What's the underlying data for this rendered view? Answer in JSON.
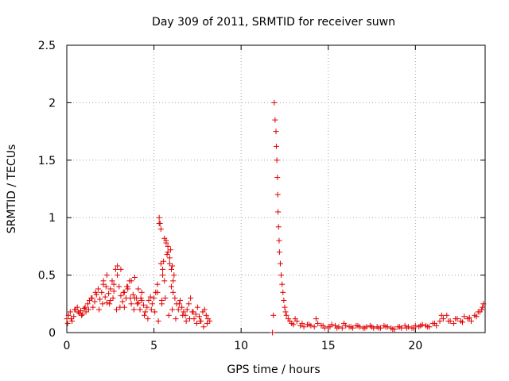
{
  "chart_data": {
    "type": "scatter",
    "title": "Day 309 of 2011, SRMTID for receiver suwn",
    "xlabel": "GPS time / hours",
    "ylabel": "SRMTID / TECUs",
    "xlim": [
      0,
      24
    ],
    "ylim": [
      0,
      2.5
    ],
    "xticks": [
      0,
      5,
      10,
      15,
      20
    ],
    "xtick_labels": [
      "0",
      "5",
      "10",
      "15",
      "20"
    ],
    "yticks": [
      0,
      0.5,
      1,
      1.5,
      2,
      2.5
    ],
    "ytick_labels": [
      "0",
      "0.5",
      "1",
      "1.5",
      "2",
      "2.5"
    ],
    "grid": true,
    "marker": "+",
    "marker_color": "#e00000",
    "series": [
      {
        "name": "SRMTID",
        "x": [
          0.0,
          0.1,
          0.2,
          0.3,
          0.4,
          0.5,
          0.6,
          0.7,
          0.8,
          0.9,
          1.0,
          1.1,
          1.2,
          1.3,
          1.4,
          1.5,
          1.6,
          1.7,
          1.8,
          1.9,
          2.0,
          2.1,
          2.2,
          2.3,
          2.4,
          2.5,
          2.6,
          2.7,
          2.8,
          2.9,
          3.0,
          3.1,
          3.2,
          3.3,
          3.4,
          3.5,
          3.6,
          3.7,
          3.8,
          3.9,
          4.0,
          4.1,
          4.2,
          4.3,
          4.4,
          4.5,
          4.6,
          4.7,
          4.8,
          4.9,
          5.0,
          5.1,
          5.2,
          5.3,
          5.4,
          5.5,
          5.6,
          5.7,
          5.8,
          5.9,
          6.0,
          6.1,
          6.2,
          6.3,
          6.4,
          6.5,
          6.6,
          6.7,
          6.8,
          6.9,
          7.0,
          7.1,
          7.2,
          7.3,
          7.4,
          7.5,
          7.6,
          7.7,
          7.8,
          7.9,
          8.0,
          8.1,
          8.2,
          0.05,
          0.25,
          0.45,
          0.65,
          0.85,
          1.05,
          1.25,
          1.45,
          1.65,
          1.85,
          2.05,
          2.25,
          2.45,
          2.65,
          2.85,
          3.05,
          3.25,
          3.45,
          3.65,
          3.85,
          4.05,
          4.25,
          4.45,
          4.65,
          4.85,
          5.05,
          5.25,
          5.45,
          5.65,
          5.85,
          6.05,
          6.25,
          6.45,
          6.65,
          6.85,
          7.05,
          7.25,
          7.45,
          7.65,
          7.85,
          8.05,
          2.1,
          2.3,
          2.5,
          2.7,
          2.9,
          3.1,
          3.3,
          3.5,
          3.7,
          3.9,
          4.1,
          4.3,
          5.3,
          5.35,
          5.4,
          5.5,
          5.6,
          5.7,
          5.8,
          5.9,
          6.0,
          6.1,
          5.2,
          5.45,
          5.55,
          5.75,
          5.95,
          6.05,
          6.15,
          11.8,
          11.85,
          11.9,
          11.95,
          12.0,
          12.02,
          12.05,
          12.08,
          12.1,
          12.12,
          12.15,
          12.18,
          12.2,
          12.25,
          12.3,
          12.35,
          12.4,
          12.45,
          12.5,
          12.55,
          12.6,
          12.7,
          12.8,
          12.9,
          13.0,
          13.2,
          13.4,
          13.6,
          13.8,
          14.0,
          14.2,
          14.4,
          14.6,
          14.8,
          15.0,
          15.2,
          15.4,
          15.6,
          15.8,
          16.0,
          16.2,
          16.4,
          16.6,
          16.8,
          17.0,
          17.2,
          17.4,
          17.6,
          17.8,
          18.0,
          18.2,
          18.4,
          18.6,
          18.8,
          19.0,
          19.2,
          19.4,
          19.6,
          19.8,
          20.0,
          20.2,
          20.4,
          20.6,
          20.8,
          21.0,
          21.2,
          21.4,
          21.6,
          21.8,
          22.0,
          22.2,
          22.4,
          22.6,
          22.8,
          23.0,
          23.2,
          23.4,
          23.6,
          23.8,
          23.9,
          13.1,
          13.5,
          13.9,
          14.3,
          14.7,
          15.1,
          15.5,
          15.9,
          16.3,
          16.7,
          17.1,
          17.5,
          17.9,
          18.3,
          18.7,
          19.1,
          19.5,
          19.9,
          20.3,
          20.7,
          21.1,
          21.5,
          21.9,
          22.3,
          22.7,
          23.1,
          23.5,
          23.7,
          23.85
        ],
        "y": [
          0.12,
          0.15,
          0.18,
          0.1,
          0.14,
          0.2,
          0.22,
          0.17,
          0.19,
          0.16,
          0.21,
          0.18,
          0.25,
          0.28,
          0.3,
          0.22,
          0.27,
          0.33,
          0.38,
          0.29,
          0.35,
          0.42,
          0.31,
          0.26,
          0.34,
          0.28,
          0.45,
          0.36,
          0.55,
          0.5,
          0.4,
          0.32,
          0.27,
          0.22,
          0.3,
          0.38,
          0.45,
          0.25,
          0.33,
          0.48,
          0.3,
          0.26,
          0.2,
          0.28,
          0.24,
          0.18,
          0.22,
          0.28,
          0.31,
          0.25,
          0.3,
          0.35,
          0.42,
          0.95,
          0.9,
          0.5,
          0.45,
          0.8,
          0.75,
          0.6,
          0.4,
          0.35,
          0.3,
          0.25,
          0.2,
          0.28,
          0.22,
          0.18,
          0.15,
          0.2,
          0.25,
          0.3,
          0.18,
          0.12,
          0.16,
          0.22,
          0.14,
          0.1,
          0.18,
          0.2,
          0.15,
          0.12,
          0.1,
          0.08,
          0.12,
          0.2,
          0.18,
          0.15,
          0.22,
          0.2,
          0.3,
          0.35,
          0.2,
          0.25,
          0.4,
          0.25,
          0.3,
          0.2,
          0.22,
          0.35,
          0.4,
          0.3,
          0.2,
          0.25,
          0.3,
          0.15,
          0.12,
          0.2,
          0.18,
          0.1,
          0.25,
          0.3,
          0.15,
          0.2,
          0.12,
          0.25,
          0.15,
          0.1,
          0.12,
          0.18,
          0.08,
          0.1,
          0.05,
          0.08,
          0.45,
          0.5,
          0.38,
          0.42,
          0.58,
          0.55,
          0.35,
          0.4,
          0.45,
          0.3,
          0.38,
          0.35,
          1.0,
          0.95,
          0.6,
          0.55,
          0.82,
          0.78,
          0.7,
          0.65,
          0.55,
          0.45,
          0.35,
          0.28,
          0.62,
          0.68,
          0.72,
          0.58,
          0.5,
          0.0,
          0.15,
          2.0,
          1.85,
          1.75,
          1.62,
          1.5,
          1.35,
          1.2,
          1.05,
          0.92,
          0.8,
          0.7,
          0.6,
          0.5,
          0.42,
          0.35,
          0.28,
          0.22,
          0.18,
          0.15,
          0.12,
          0.1,
          0.08,
          0.07,
          0.1,
          0.06,
          0.05,
          0.07,
          0.06,
          0.05,
          0.08,
          0.06,
          0.04,
          0.05,
          0.07,
          0.06,
          0.05,
          0.04,
          0.06,
          0.05,
          0.04,
          0.06,
          0.05,
          0.04,
          0.05,
          0.06,
          0.04,
          0.05,
          0.04,
          0.06,
          0.05,
          0.04,
          0.03,
          0.05,
          0.04,
          0.06,
          0.05,
          0.04,
          0.06,
          0.05,
          0.07,
          0.06,
          0.05,
          0.08,
          0.06,
          0.1,
          0.12,
          0.15,
          0.1,
          0.08,
          0.12,
          0.1,
          0.14,
          0.12,
          0.1,
          0.15,
          0.18,
          0.2,
          0.25,
          0.12,
          0.08,
          0.07,
          0.12,
          0.06,
          0.05,
          0.04,
          0.08,
          0.05,
          0.06,
          0.04,
          0.05,
          0.04,
          0.05,
          0.03,
          0.05,
          0.04,
          0.04,
          0.06,
          0.05,
          0.08,
          0.15,
          0.1,
          0.12,
          0.09,
          0.13,
          0.14,
          0.18,
          0.22
        ]
      }
    ]
  }
}
